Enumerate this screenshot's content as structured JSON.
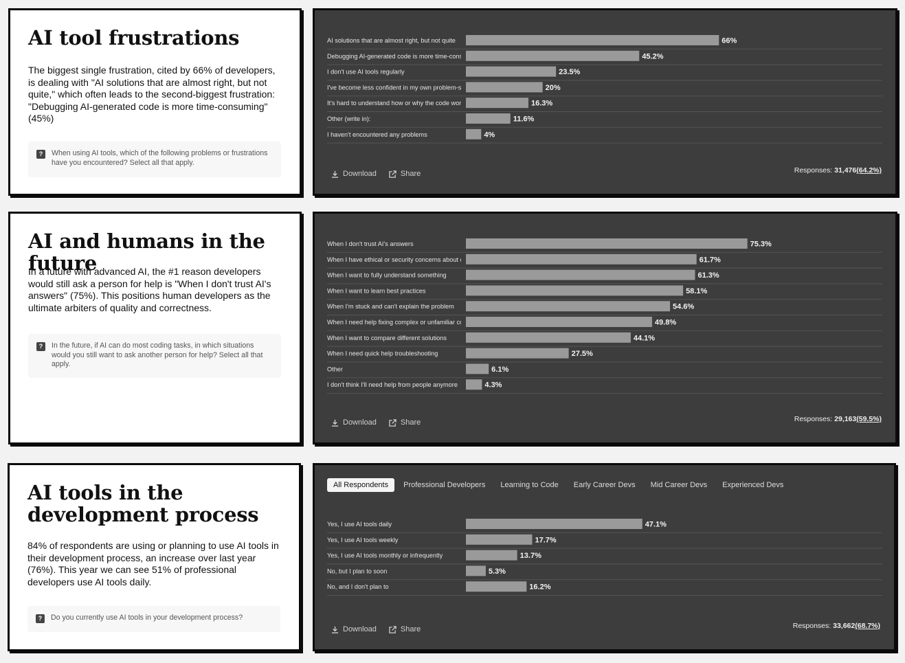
{
  "colors": {
    "panel_bg": "#3d3d3d",
    "bar": "#9a9a9a",
    "gridline": "#555555",
    "card_bg": "#ffffff"
  },
  "sections": [
    {
      "title": "AI tool frustrations",
      "description": "The biggest single frustration, cited by 66% of developers, is dealing with \"AI solutions that are almost right, but not quite,\" which often leads to the second-biggest frustration: \"Debugging AI-generated code is more time-consuming\" (45%)",
      "question": "When using AI tools, which of the following problems or frustrations have you encountered? Select all that apply.",
      "download_label": "Download",
      "share_label": "Share",
      "responses_label": "Responses:",
      "responses_count": "31,476",
      "responses_pct": "(64.2%)"
    },
    {
      "title": "AI and humans in the future",
      "description": "In a future with advanced AI, the #1 reason developers would still ask a person for help is \"When I don't trust AI's answers\" (75%). This positions human developers as the ultimate arbiters of quality and correctness.",
      "question": "In the future, if AI can do most coding tasks, in which situations would you still want to ask another person for help? Select all that apply.",
      "download_label": "Download",
      "share_label": "Share",
      "responses_label": "Responses:",
      "responses_count": "29,163",
      "responses_pct": "(59.5%)"
    },
    {
      "title": "AI tools in the development process",
      "description": "84% of respondents are using or planning to use AI tools in their development process, an increase over last year (76%). This year we can see 51% of professional developers use AI tools daily.",
      "question": "Do you currently use AI tools in your development process?",
      "download_label": "Download",
      "share_label": "Share",
      "responses_label": "Responses:",
      "responses_count": "33,662",
      "responses_pct": "(68.7%)",
      "tabs": [
        "All Respondents",
        "Professional Developers",
        "Learning to Code",
        "Early Career Devs",
        "Mid Career Devs",
        "Experienced Devs"
      ]
    }
  ],
  "chart_data": [
    {
      "type": "bar",
      "orientation": "horizontal",
      "categories": [
        "AI solutions that are almost right, but not quite",
        "Debugging AI-generated code is more time-consuming",
        "I don't use AI tools regularly",
        "I've become less confident in my own problem-solving",
        "It's hard to understand how or why the code works",
        "Other (write in):",
        "I haven't encountered any problems"
      ],
      "values": [
        66,
        45.2,
        23.5,
        20,
        16.3,
        11.6,
        4
      ],
      "value_labels": [
        "66%",
        "45.2%",
        "23.5%",
        "20%",
        "16.3%",
        "11.6%",
        "4%"
      ],
      "xlim": [
        0,
        100
      ]
    },
    {
      "type": "bar",
      "orientation": "horizontal",
      "categories": [
        "When I don't trust AI's answers",
        "When I have ethical or security concerns about code",
        "When I want to fully understand something",
        "When I want to learn best practices",
        "When I'm stuck and can't explain the problem",
        "When I need help fixing complex or unfamiliar code",
        "When I want to compare different solutions",
        "When I need quick help troubleshooting",
        "Other",
        "I don't think I'll need help from people anymore"
      ],
      "values": [
        75.3,
        61.7,
        61.3,
        58.1,
        54.6,
        49.8,
        44.1,
        27.5,
        6.1,
        4.3
      ],
      "value_labels": [
        "75.3%",
        "61.7%",
        "61.3%",
        "58.1%",
        "54.6%",
        "49.8%",
        "44.1%",
        "27.5%",
        "6.1%",
        "4.3%"
      ],
      "xlim": [
        0,
        100
      ]
    },
    {
      "type": "bar",
      "orientation": "horizontal",
      "categories": [
        "Yes, I use AI tools daily",
        "Yes, I use AI tools weekly",
        "Yes, I use AI tools monthly or infrequently",
        "No, but I plan to soon",
        "No, and I don't plan to"
      ],
      "values": [
        47.1,
        17.7,
        13.7,
        5.3,
        16.2
      ],
      "value_labels": [
        "47.1%",
        "17.7%",
        "13.7%",
        "5.3%",
        "16.2%"
      ],
      "xlim": [
        0,
        100
      ]
    }
  ]
}
